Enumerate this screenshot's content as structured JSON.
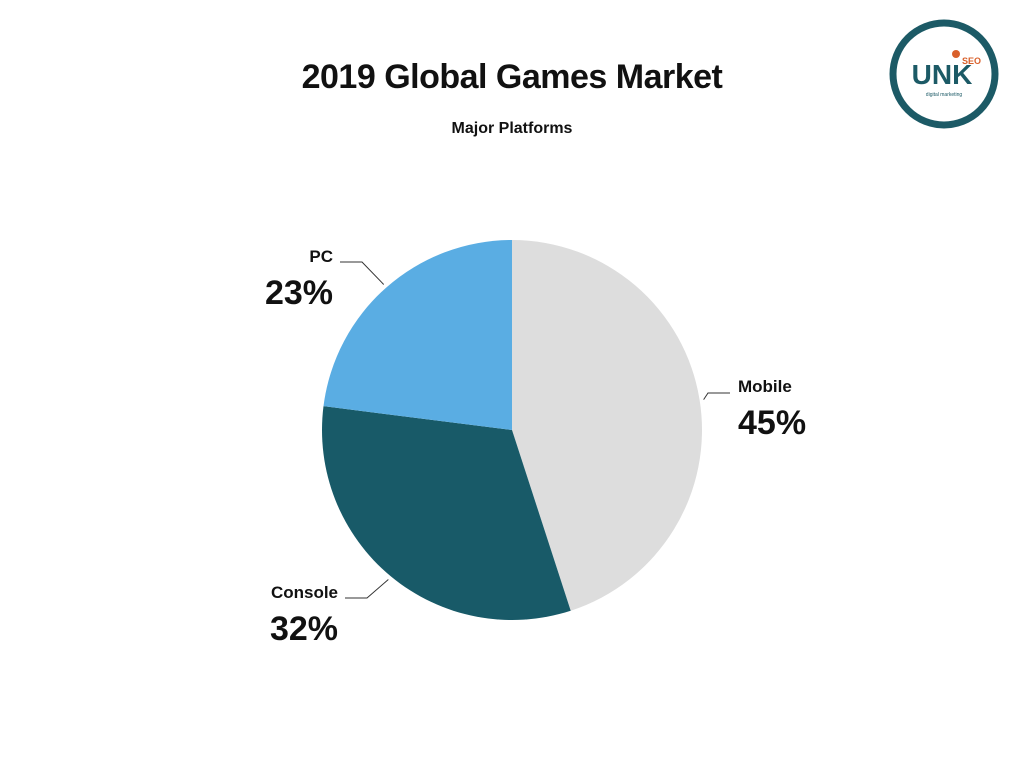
{
  "chart_data": {
    "type": "pie",
    "title": "2019 Global Games Market",
    "subtitle": "Major Platforms",
    "slices": [
      {
        "label": "Mobile",
        "value": 45,
        "value_label": "45%",
        "color": "#dddddd"
      },
      {
        "label": "Console",
        "value": 32,
        "value_label": "32%",
        "color": "#185a68"
      },
      {
        "label": "PC",
        "value": 23,
        "value_label": "23%",
        "color": "#5aade3"
      }
    ],
    "start": "12 o'clock",
    "direction": "clockwise",
    "legend": "none"
  },
  "logo": {
    "mark": "UNK",
    "superscript": "SEO",
    "tagline": "digital marketing",
    "ring_color": "#1c5a66",
    "accent_color": "#d9602b"
  }
}
